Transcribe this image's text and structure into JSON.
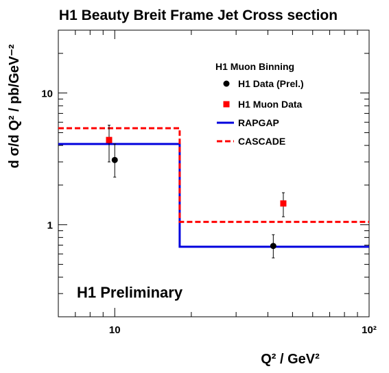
{
  "chart_data": {
    "type": "scatter",
    "title": "H1 Beauty Breit Frame Jet Cross section",
    "xlabel": "Q² / GeV²",
    "ylabel": "d σ/d Q² / pb/GeV⁻²",
    "xscale": "log",
    "yscale": "log",
    "xlim": [
      6,
      100
    ],
    "ylim": [
      0.2,
      30
    ],
    "x_tick_labels": [
      "10",
      "10²"
    ],
    "y_tick_labels": [
      "1",
      "10"
    ],
    "grid": false,
    "legend_title": "H1 Muon Binning",
    "legend_position": "top-right",
    "annotation": "H1 Preliminary",
    "series": [
      {
        "name": "H1 Data (Prel.)",
        "kind": "points",
        "marker": "circle",
        "color": "#000000",
        "points": [
          {
            "x": 10,
            "y": 3.1,
            "ylow": 2.3,
            "yhigh": 4.1
          },
          {
            "x": 42,
            "y": 0.69,
            "ylow": 0.56,
            "yhigh": 0.84
          }
        ]
      },
      {
        "name": "H1 Muon Data",
        "kind": "points",
        "marker": "square",
        "color": "#ff0000",
        "points": [
          {
            "x": 9.5,
            "y": 4.4,
            "ylow": 3.0,
            "yhigh": 5.7
          },
          {
            "x": 46,
            "y": 1.45,
            "ylow": 1.15,
            "yhigh": 1.75
          }
        ]
      },
      {
        "name": "RAPGAP",
        "kind": "step",
        "style": "solid",
        "color": "#0000dd",
        "bins": [
          {
            "xlow": 6,
            "xhigh": 18,
            "y": 4.1
          },
          {
            "xlow": 18,
            "xhigh": 100,
            "y": 0.68
          }
        ]
      },
      {
        "name": "CASCADE",
        "kind": "step",
        "style": "dashed",
        "color": "#ff0000",
        "bins": [
          {
            "xlow": 6,
            "xhigh": 18,
            "y": 5.4
          },
          {
            "xlow": 18,
            "xhigh": 100,
            "y": 1.05
          }
        ]
      }
    ]
  }
}
